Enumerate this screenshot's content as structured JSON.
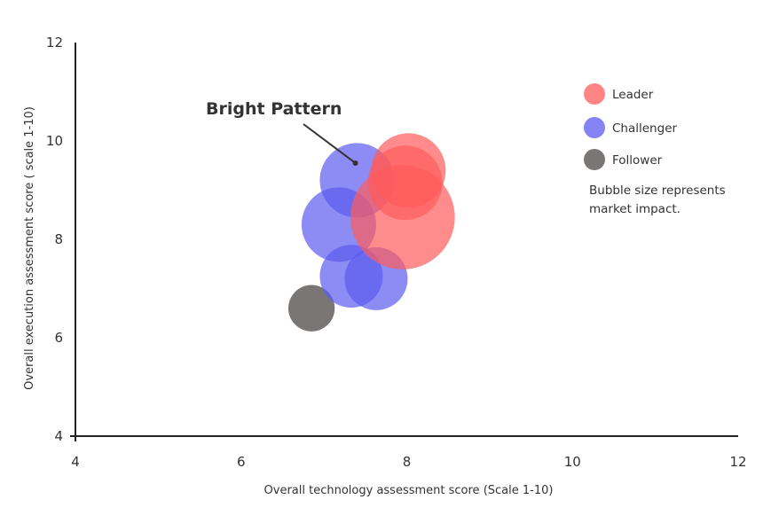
{
  "chart_data": {
    "type": "scatter",
    "subtype": "bubble",
    "xlabel": "Overall technology assessment score (Scale 1-10)",
    "ylabel": "Overall execution assessment score ( scale 1-10)",
    "xlim": [
      4,
      12
    ],
    "ylim": [
      4,
      12
    ],
    "x_ticks": [
      4,
      6,
      8,
      10,
      12
    ],
    "y_ticks": [
      4,
      6,
      8,
      10,
      12
    ],
    "grid": false,
    "legend_position": "top-right",
    "series": [
      {
        "name": "Leader",
        "color": "#ff5b5b",
        "points": [
          {
            "x": 8.02,
            "y": 9.4,
            "size": 0.45
          },
          {
            "x": 7.98,
            "y": 9.15,
            "size": 0.45
          },
          {
            "x": 7.95,
            "y": 8.45,
            "size": 0.63
          }
        ]
      },
      {
        "name": "Challenger",
        "color": "#5b5bf0",
        "points": [
          {
            "x": 7.4,
            "y": 9.2,
            "size": 0.45
          },
          {
            "x": 7.18,
            "y": 8.3,
            "size": 0.45
          },
          {
            "x": 7.33,
            "y": 7.25,
            "size": 0.38
          },
          {
            "x": 7.63,
            "y": 7.2,
            "size": 0.38
          }
        ]
      },
      {
        "name": "Follower",
        "color": "#6b6767",
        "points": [
          {
            "x": 6.85,
            "y": 6.6,
            "size": 0.28
          }
        ]
      }
    ],
    "annotation": {
      "text": "Bright Pattern",
      "points_to": {
        "x": 7.38,
        "y": 9.55
      }
    },
    "note": [
      "Bubble size represents",
      "market impact."
    ]
  }
}
